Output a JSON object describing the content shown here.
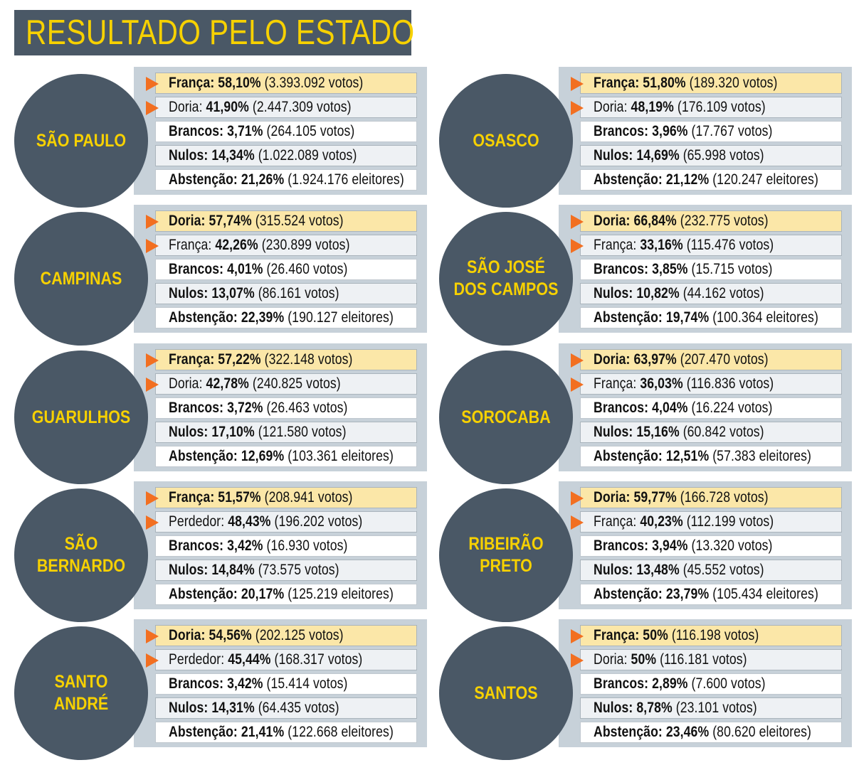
{
  "title": "RESULTADO PELO ESTADO",
  "colors": {
    "banner": "#4a5866",
    "accent": "#f7d100",
    "arrow": "#f26f21",
    "highlight": "#fbe7a8",
    "panel": "#c7d1d9"
  },
  "cities": [
    {
      "name": "SÃO PAULO",
      "rows": [
        {
          "label": "França:",
          "value": "58,10%",
          "votes": "(3.393.092 votos)"
        },
        {
          "label": "Doria:",
          "value": "41,90%",
          "votes": "(2.447.309 votos)"
        },
        {
          "label": "Brancos:",
          "value": "3,71%",
          "votes": "(264.105 votos)"
        },
        {
          "label": "Nulos:",
          "value": "14,34%",
          "votes": "(1.022.089 votos)"
        },
        {
          "label": "Abstenção:",
          "value": "21,26%",
          "votes": "(1.924.176 eleitores)"
        }
      ]
    },
    {
      "name": "OSASCO",
      "rows": [
        {
          "label": "França:",
          "value": "51,80%",
          "votes": "(189.320 votos)"
        },
        {
          "label": "Doria:",
          "value": "48,19%",
          "votes": "(176.109 votos)"
        },
        {
          "label": "Brancos:",
          "value": "3,96%",
          "votes": "(17.767 votos)"
        },
        {
          "label": "Nulos:",
          "value": "14,69%",
          "votes": "(65.998 votos)"
        },
        {
          "label": "Abstenção:",
          "value": "21,12%",
          "votes": "(120.247 eleitores)"
        }
      ]
    },
    {
      "name": "CAMPINAS",
      "rows": [
        {
          "label": "Doria:",
          "value": "57,74%",
          "votes": "(315.524 votos)"
        },
        {
          "label": "França:",
          "value": "42,26%",
          "votes": "(230.899 votos)"
        },
        {
          "label": "Brancos:",
          "value": "4,01%",
          "votes": "(26.460 votos)"
        },
        {
          "label": "Nulos:",
          "value": "13,07%",
          "votes": "(86.161 votos)"
        },
        {
          "label": "Abstenção:",
          "value": "22,39%",
          "votes": "(190.127 eleitores)"
        }
      ]
    },
    {
      "name": "SÃO JOSÉ\nDOS CAMPOS",
      "rows": [
        {
          "label": "Doria:",
          "value": "66,84%",
          "votes": "(232.775 votos)"
        },
        {
          "label": "França:",
          "value": "33,16%",
          "votes": "(115.476 votos)"
        },
        {
          "label": "Brancos:",
          "value": "3,85%",
          "votes": "(15.715 votos)"
        },
        {
          "label": "Nulos:",
          "value": "10,82%",
          "votes": "(44.162 votos)"
        },
        {
          "label": "Abstenção:",
          "value": "19,74%",
          "votes": "(100.364 eleitores)"
        }
      ]
    },
    {
      "name": "GUARULHOS",
      "rows": [
        {
          "label": "França:",
          "value": "57,22%",
          "votes": "(322.148 votos)"
        },
        {
          "label": "Doria:",
          "value": "42,78%",
          "votes": "(240.825 votos)"
        },
        {
          "label": "Brancos:",
          "value": "3,72%",
          "votes": "(26.463 votos)"
        },
        {
          "label": "Nulos:",
          "value": "17,10%",
          "votes": "(121.580 votos)"
        },
        {
          "label": "Abstenção:",
          "value": "12,69%",
          "votes": "(103.361 eleitores)"
        }
      ]
    },
    {
      "name": "SOROCABA",
      "rows": [
        {
          "label": "Doria:",
          "value": "63,97%",
          "votes": "(207.470 votos)"
        },
        {
          "label": "França:",
          "value": "36,03%",
          "votes": "(116.836 votos)"
        },
        {
          "label": "Brancos:",
          "value": "4,04%",
          "votes": "(16.224 votos)"
        },
        {
          "label": "Nulos:",
          "value": "15,16%",
          "votes": "(60.842 votos)"
        },
        {
          "label": "Abstenção:",
          "value": "12,51%",
          "votes": "(57.383 eleitores)"
        }
      ]
    },
    {
      "name": "SÃO\nBERNARDO",
      "rows": [
        {
          "label": "França:",
          "value": "51,57%",
          "votes": "(208.941 votos)"
        },
        {
          "label": "Perdedor:",
          "value": "48,43%",
          "votes": "(196.202 votos)"
        },
        {
          "label": "Brancos:",
          "value": "3,42%",
          "votes": "(16.930 votos)"
        },
        {
          "label": "Nulos:",
          "value": "14,84%",
          "votes": "(73.575 votos)"
        },
        {
          "label": "Abstenção:",
          "value": "20,17%",
          "votes": "(125.219 eleitores)"
        }
      ]
    },
    {
      "name": "RIBEIRÃO\nPRETO",
      "rows": [
        {
          "label": "Doria:",
          "value": "59,77%",
          "votes": "(166.728 votos)"
        },
        {
          "label": "França:",
          "value": "40,23%",
          "votes": "(112.199 votos)"
        },
        {
          "label": "Brancos:",
          "value": "3,94%",
          "votes": "(13.320 votos)"
        },
        {
          "label": "Nulos:",
          "value": "13,48%",
          "votes": "(45.552 votos)"
        },
        {
          "label": "Abstenção:",
          "value": "23,79%",
          "votes": "(105.434 eleitores)"
        }
      ]
    },
    {
      "name": "SANTO\nANDRÉ",
      "rows": [
        {
          "label": "Doria:",
          "value": "54,56%",
          "votes": "(202.125 votos)"
        },
        {
          "label": "Perdedor:",
          "value": "45,44%",
          "votes": "(168.317 votos)"
        },
        {
          "label": "Brancos:",
          "value": "3,42%",
          "votes": "(15.414 votos)"
        },
        {
          "label": "Nulos:",
          "value": "14,31%",
          "votes": "(64.435 votos)"
        },
        {
          "label": "Abstenção:",
          "value": "21,41%",
          "votes": "(122.668 eleitores)"
        }
      ]
    },
    {
      "name": "SANTOS",
      "rows": [
        {
          "label": "França:",
          "value": "50%",
          "votes": "(116.198 votos)"
        },
        {
          "label": "Doria:",
          "value": "50%",
          "votes": "(116.181 votos)"
        },
        {
          "label": "Brancos:",
          "value": "2,89%",
          "votes": "(7.600 votos)"
        },
        {
          "label": "Nulos:",
          "value": "8,78%",
          "votes": "(23.101 votos)"
        },
        {
          "label": "Abstenção:",
          "value": "23,46%",
          "votes": "(80.620 eleitores)"
        }
      ]
    }
  ]
}
